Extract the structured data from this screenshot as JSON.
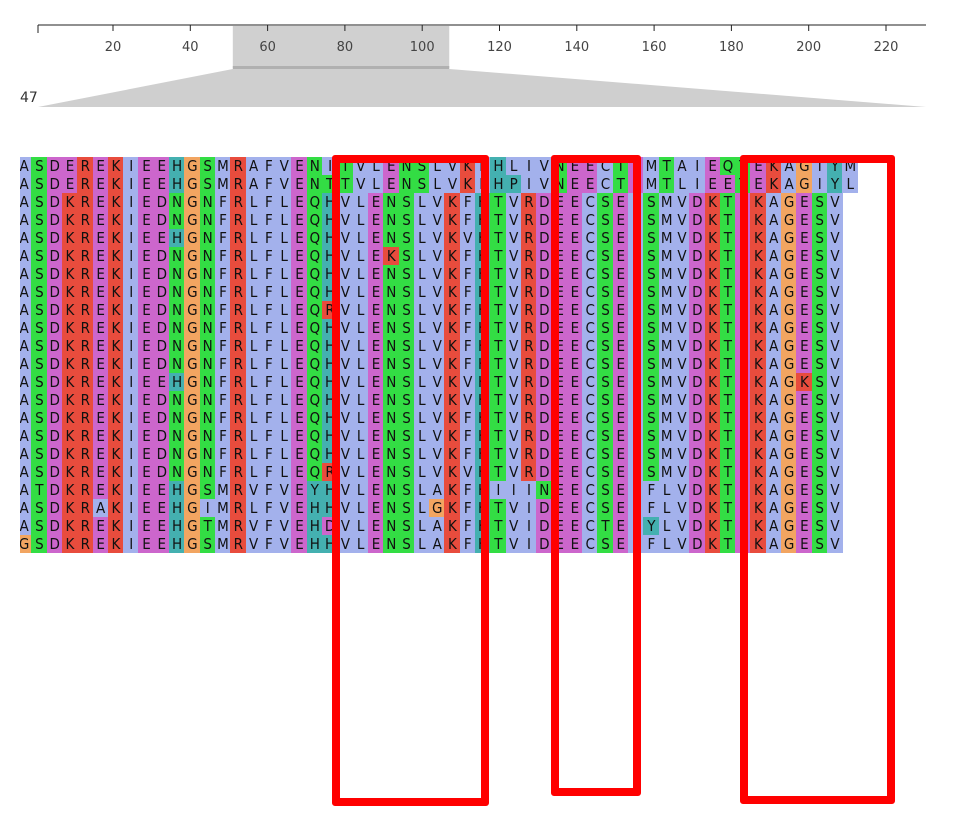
{
  "ruler": {
    "ticks": [
      "20",
      "40",
      "60",
      "80",
      "100",
      "120",
      "140",
      "160",
      "180",
      "200",
      "220"
    ],
    "tick_positions": [
      20,
      40,
      60,
      80,
      100,
      120,
      140,
      160,
      180,
      200,
      220
    ],
    "selection_start": 51,
    "selection_end": 107
  },
  "position_label": "47",
  "alignment": {
    "rows": [
      "ASDEREKIEEHGSMRAFVENITVLENSLVKFHLIVNEECTEMTAIEQTEKAGIYM",
      "ASDEREKIEEHGSMRAFVENTTVLENSLVKFHPIVNEECTEMTLIEETEKAGIYL",
      "ASDKREKIEDNGNFRLFLEQHVLENSLVKFHTVRDEECSELSMVDKTEKAGESV",
      "ASDKREKIEDNGNFRLFLEQHVLENSLVKFHTVRDEECSELSMVDKTEKAGESV",
      "ASDKREKIEEHGNFRLFLEQHVLENSLVKVHTVRDEECSELSMVDKTEKAGESV",
      "ASDKREKIEDNGNFRLFLEQHVLEKSLVKFHTVRDEECSELSMVDKTEKAGESV",
      "ASDKREKIEDNGNFRLFLEQHVLENSLVKFHTVRDEECSELSMVDKTEKAGESV",
      "ASDKREKIEDNGNFRLFLEQHVLENSLVKFHTVRDEECSELSMVDKTEKAGESV",
      "ASDKREKIEDNGNFRLFLEQRVLENSLVKFHTVRDEECSELSMVDKTEKAGESV",
      "ASDKREKIEDNGNFRLFLEQHVLENSLVKFHTVRDEECSELSMVDKTEKAGESV",
      "ASDKREKIEDNGNFRLFLEQHVLENSLVKFHTVRDEECSELSMVDKTEKAGESV",
      "ASDKREKIEDNGNFRLFLEQHVLENSLVKFHTVRDEECSELSMVDKTEKAGESV",
      "ASDKREKIEEHGNFRLFLEQHVLENSLVKVHTVRDEECSELSMVDKTEKAGKSV",
      "ASDKREKIEDNGNFRLFLEQHVLENSLVKVHTVRDEECSELSMVDKTEKAGESV",
      "ASDKREKIEDNGNFRLFLEQHVLENSLVKFHTVRDEECSELSMVDKTEKAGESV",
      "ASDKREKIEDNGNFRLFLEQHVLENSLVKFHTVRDEECSELSMVDKTEKAGESV",
      "ASDKREKIEDNGNFRLFLEQHVLENSLVKFHTVRDEECSELSMVDKTEKAGESV",
      "ASDKREKIEDNGNFRLFLEQRVLENSLVKVHTVRDEECSELSMVDKTEKAGESV",
      "ATDKREKIEEHGSMRVFVEYHVLENSLAKFHIIINEECSEIFLVDKTEKAGESV",
      "ASDKRAKIEEHGIMRLFVEHHVLENSLGKFHTVIDEECSEIFLVDKTEKAGESV",
      "ASDKREKIEEHGTMRVFVEHDVLENSLAKFHTVIDEECTEIYLVDKTEKAGESV",
      "GSDKREKIEEHGSMRVFVEHHVLENSLAKFHTVIDEECSEIFLVDKTEKAGESV"
    ]
  },
  "highlight_boxes": [
    {
      "name": "highlight-box-1",
      "color": "#ff0000"
    },
    {
      "name": "highlight-box-2",
      "color": "#ff0000"
    },
    {
      "name": "highlight-box-3",
      "color": "#ff0000"
    }
  ],
  "colors": {
    "hydrophobic": "#a3b1ec",
    "acidic": "#cc66cc",
    "basic": "#e84c3d",
    "polar": "#33dd44",
    "glycine": "#f2a561",
    "aromatic": "#44b0b0",
    "ruler_selection": "#d0d0d0",
    "highlight": "#ff0000"
  }
}
